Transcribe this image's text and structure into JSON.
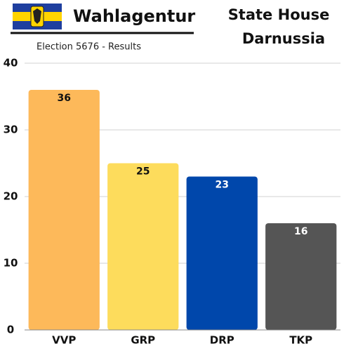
{
  "chart_data": {
    "type": "bar",
    "title": "Wahlagentur",
    "subtitle": "Election 5676 - Results",
    "header_right": [
      "State House",
      "Darnussia"
    ],
    "categories": [
      "VVP",
      "GRP",
      "DRP",
      "TKP"
    ],
    "values": [
      36,
      25,
      23,
      16
    ],
    "colors": [
      "#fdb95a",
      "#fddc5c",
      "#0047ab",
      "#555555"
    ],
    "ylim": [
      0,
      40
    ],
    "yticks": [
      0,
      10,
      20,
      30,
      40
    ],
    "grid": true
  }
}
